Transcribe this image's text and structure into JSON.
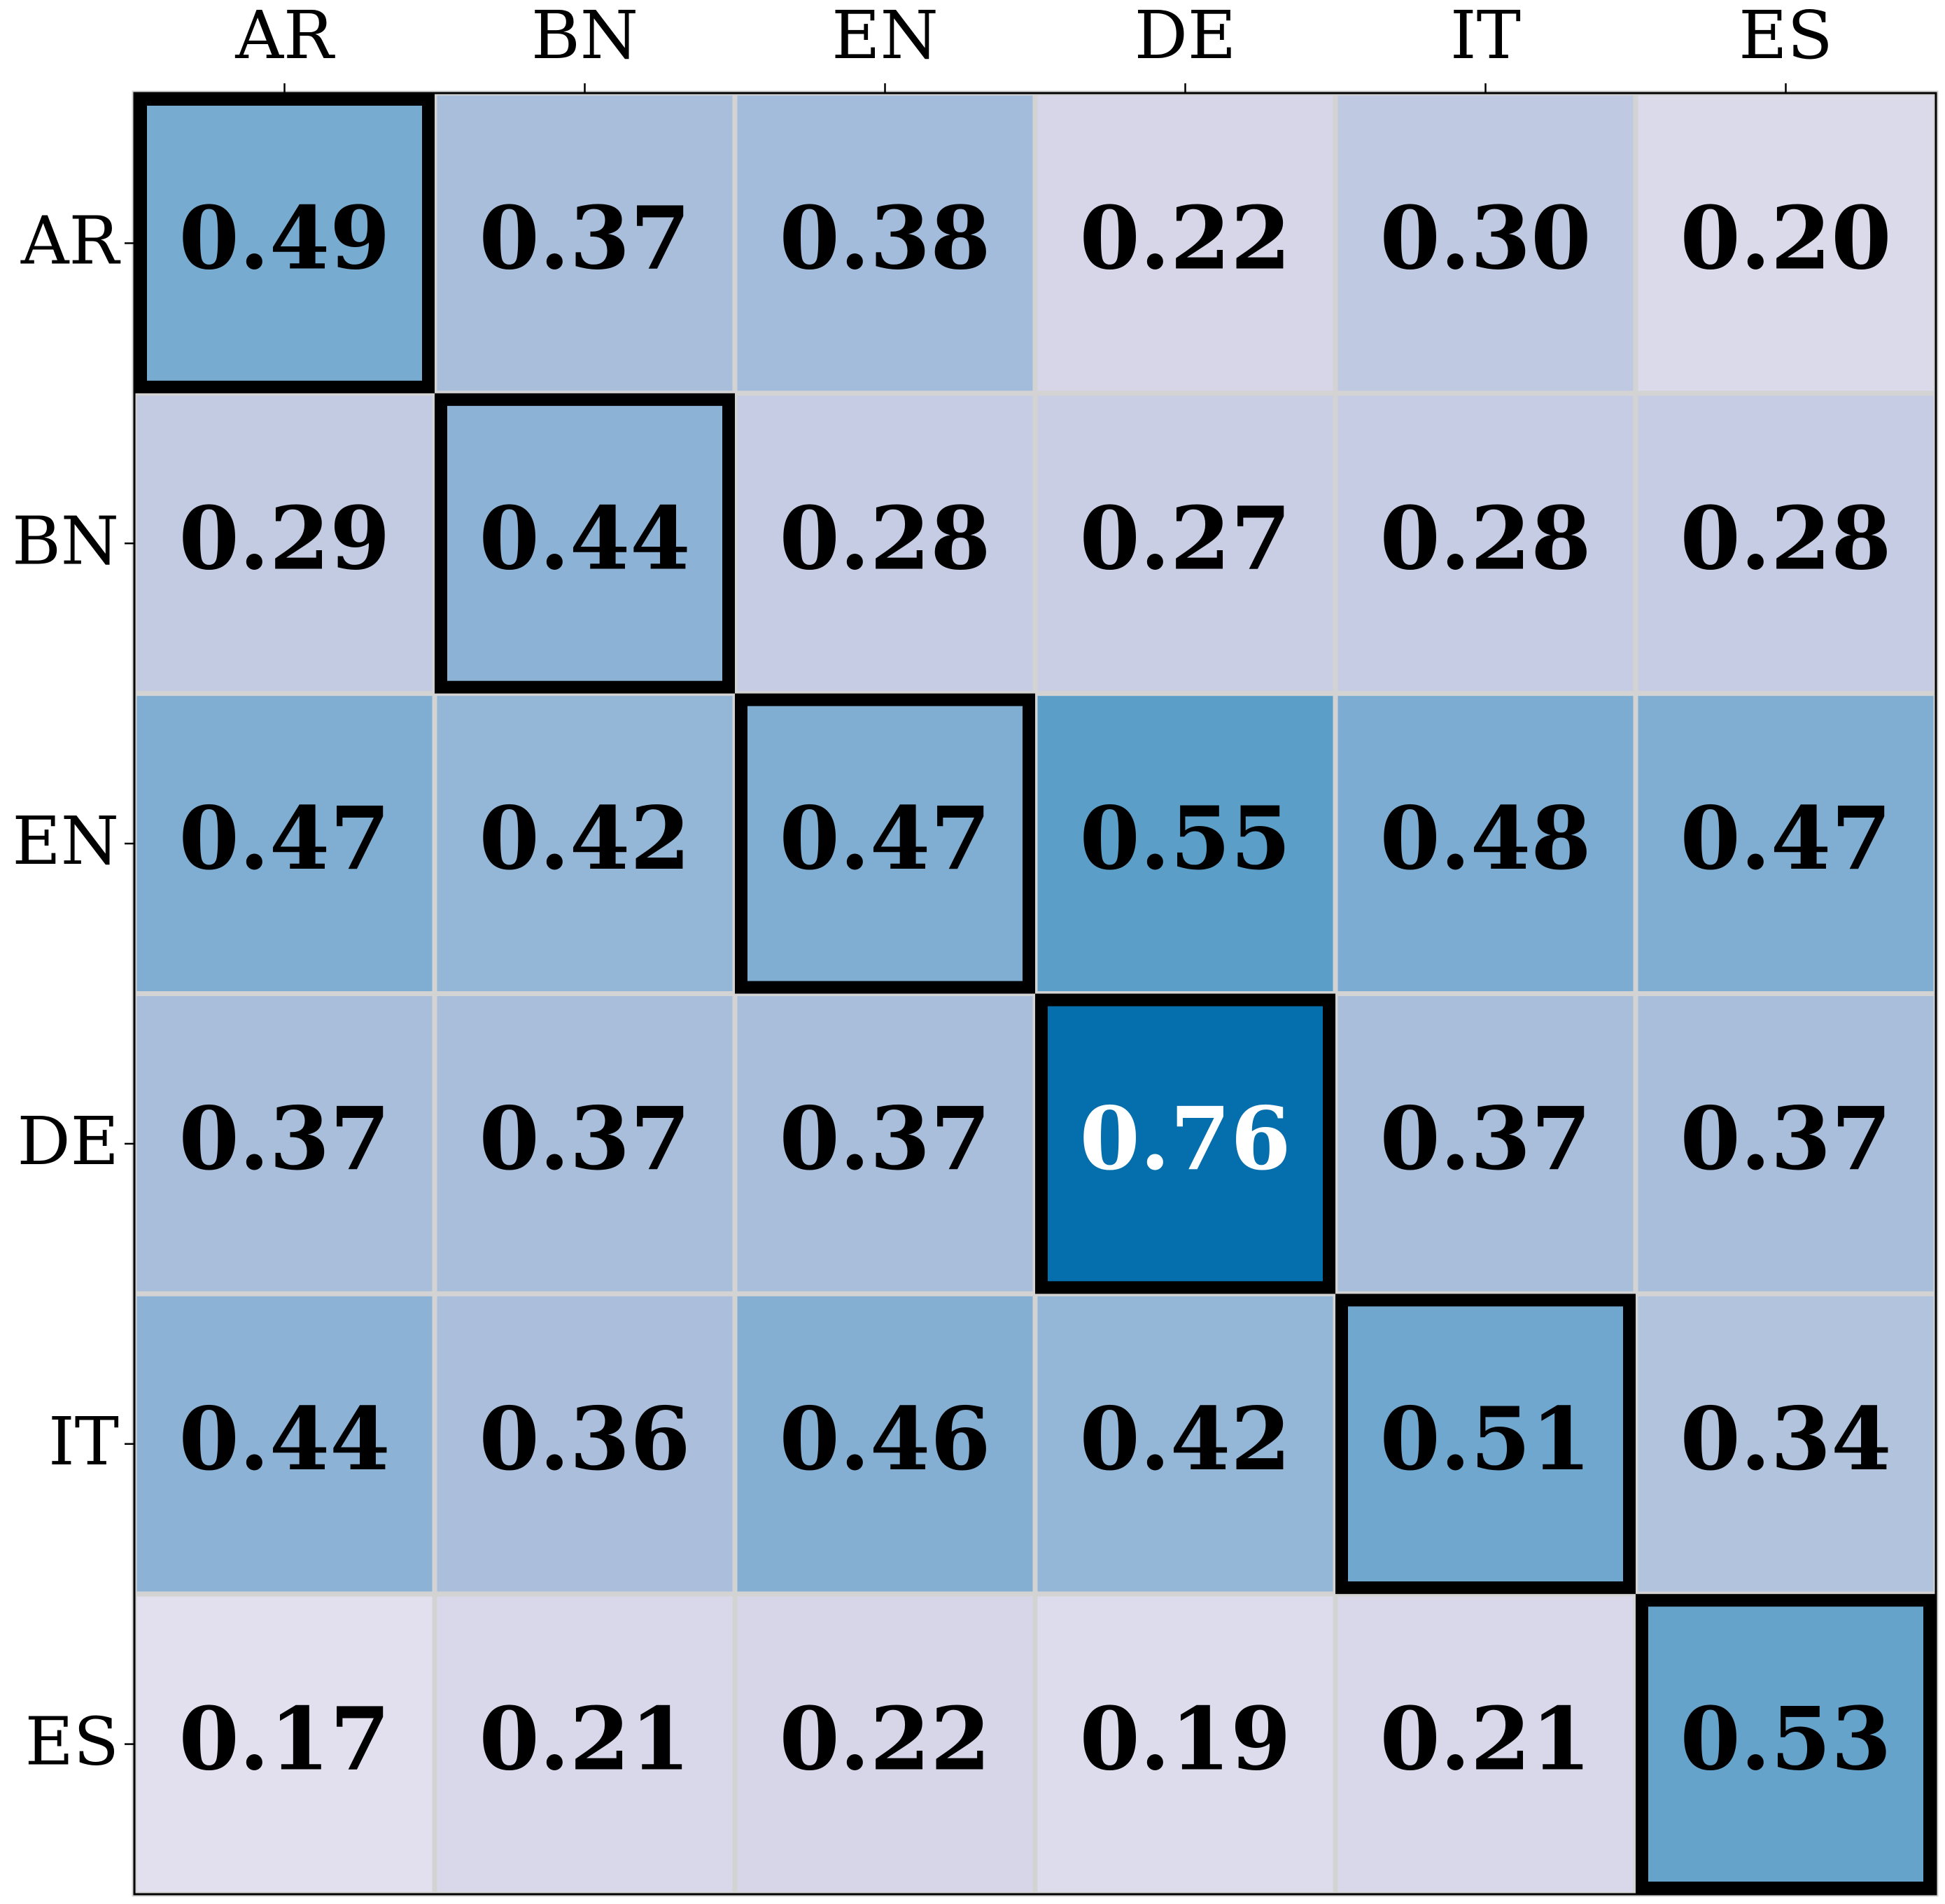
{
  "chart_data": {
    "type": "heatmap",
    "x_categories": [
      "AR",
      "BN",
      "EN",
      "DE",
      "IT",
      "ES"
    ],
    "y_categories": [
      "AR",
      "BN",
      "EN",
      "DE",
      "IT",
      "ES"
    ],
    "values": [
      [
        0.49,
        0.37,
        0.38,
        0.22,
        0.3,
        0.2
      ],
      [
        0.29,
        0.44,
        0.28,
        0.27,
        0.28,
        0.28
      ],
      [
        0.47,
        0.42,
        0.47,
        0.55,
        0.48,
        0.47
      ],
      [
        0.37,
        0.37,
        0.37,
        0.76,
        0.37,
        0.37
      ],
      [
        0.44,
        0.36,
        0.46,
        0.42,
        0.51,
        0.34
      ],
      [
        0.17,
        0.21,
        0.22,
        0.19,
        0.21,
        0.53
      ]
    ],
    "value_labels": [
      [
        "0.49",
        "0.37",
        "0.38",
        "0.22",
        "0.30",
        "0.20"
      ],
      [
        "0.29",
        "0.44",
        "0.28",
        "0.27",
        "0.28",
        "0.28"
      ],
      [
        "0.47",
        "0.42",
        "0.47",
        "0.55",
        "0.48",
        "0.47"
      ],
      [
        "0.37",
        "0.37",
        "0.37",
        "0.76",
        "0.37",
        "0.37"
      ],
      [
        "0.44",
        "0.36",
        "0.46",
        "0.42",
        "0.51",
        "0.34"
      ],
      [
        "0.17",
        "0.21",
        "0.22",
        "0.19",
        "0.21",
        "0.53"
      ]
    ],
    "cmap": [
      "#fff7fb",
      "#ece7f2",
      "#d0d1e6",
      "#a6bddb",
      "#74a9cf",
      "#3690c0",
      "#0570b0",
      "#045a8d",
      "#023858"
    ],
    "clim": [
      0,
      1
    ],
    "highlight_diagonal": true
  }
}
